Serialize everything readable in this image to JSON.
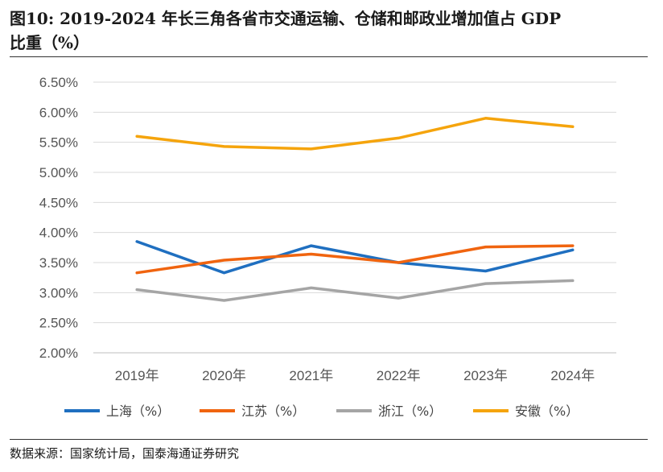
{
  "header": {
    "title_line1": "图10:  2019-2024 年长三角各省市交通运输、仓储和邮政业增加值占 GDP",
    "title_line2": "比重（%）"
  },
  "footer": {
    "source": "数据来源：国家统计局，国泰海通证券研究"
  },
  "chart_data": {
    "type": "line",
    "title": "2019-2024 年长三角各省市交通运输、仓储和邮政业增加值占 GDP 比重（%）",
    "categories": [
      "2019年",
      "2020年",
      "2021年",
      "2022年",
      "2023年",
      "2024年"
    ],
    "y_ticks": [
      "2.00%",
      "2.50%",
      "3.00%",
      "3.50%",
      "4.00%",
      "4.50%",
      "5.00%",
      "5.50%",
      "6.00%",
      "6.50%"
    ],
    "ylim": [
      2.0,
      6.5
    ],
    "grid": true,
    "legend_position": "bottom",
    "series": [
      {
        "name": "上海（%）",
        "color": "#1F6FC0",
        "values": [
          3.85,
          3.33,
          3.78,
          3.5,
          3.36,
          3.71
        ]
      },
      {
        "name": "江苏（%）",
        "color": "#F0640F",
        "values": [
          3.33,
          3.54,
          3.64,
          3.5,
          3.76,
          3.78
        ]
      },
      {
        "name": "浙江（%）",
        "color": "#A5A5A5",
        "values": [
          3.05,
          2.87,
          3.08,
          2.91,
          3.15,
          3.2
        ]
      },
      {
        "name": "安徽（%）",
        "color": "#F5A40C",
        "values": [
          5.6,
          5.43,
          5.39,
          5.57,
          5.9,
          5.76
        ]
      }
    ]
  }
}
